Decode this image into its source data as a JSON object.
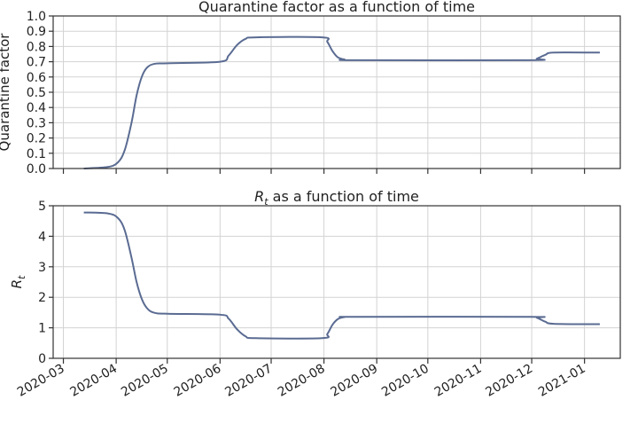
{
  "chart_data": [
    {
      "type": "line",
      "title": "Quarantine factor as a function of time",
      "ylabel": "Quarantine factor",
      "ylim": [
        0,
        1.0
      ],
      "yticks": [
        0.0,
        0.1,
        0.2,
        0.3,
        0.4,
        0.5,
        0.6,
        0.7,
        0.8,
        0.9,
        1.0
      ],
      "ytick_labels": [
        "0.0",
        "0.1",
        "0.2",
        "0.3",
        "0.4",
        "0.5",
        "0.6",
        "0.7",
        "0.8",
        "0.9",
        "1.0"
      ],
      "xlim": [
        "2020-02-24",
        "2021-01-22"
      ],
      "xticks": [
        "2020-03-01",
        "2020-04-01",
        "2020-05-01",
        "2020-06-01",
        "2020-07-01",
        "2020-08-01",
        "2020-09-01",
        "2020-10-01",
        "2020-11-01",
        "2020-12-01",
        "2021-01-01"
      ],
      "grid": true,
      "series": [
        {
          "color": "#5a6b92",
          "x": [
            "2020-03-13",
            "2020-03-27",
            "2020-04-02",
            "2020-04-06",
            "2020-04-10",
            "2020-04-13",
            "2020-04-16",
            "2020-04-19",
            "2020-04-23",
            "2020-05-01",
            "2020-06-01",
            "2020-06-06",
            "2020-06-11",
            "2020-06-16",
            "2020-06-22",
            "2020-07-31",
            "2020-08-03",
            "2020-08-06",
            "2020-08-09",
            "2020-08-13",
            "2020-08-20",
            "2020-11-30",
            "2020-12-04",
            "2020-12-09",
            "2020-12-14",
            "2021-01-10"
          ],
          "y": [
            0.0,
            0.01,
            0.04,
            0.12,
            0.3,
            0.48,
            0.6,
            0.66,
            0.685,
            0.69,
            0.7,
            0.74,
            0.81,
            0.85,
            0.86,
            0.86,
            0.83,
            0.77,
            0.73,
            0.715,
            0.71,
            0.71,
            0.72,
            0.745,
            0.76,
            0.76
          ]
        }
      ]
    },
    {
      "type": "line",
      "title": "R",
      "title_subscript": "t",
      "title_suffix": " as a function of time",
      "ylabel": "R",
      "ylabel_subscript": "t",
      "ylim": [
        0,
        5
      ],
      "yticks": [
        0,
        1,
        2,
        3,
        4,
        5
      ],
      "ytick_labels": [
        "0",
        "1",
        "2",
        "3",
        "4",
        "5"
      ],
      "xlim": [
        "2020-02-24",
        "2021-01-22"
      ],
      "xticks": [
        "2020-03-01",
        "2020-04-01",
        "2020-05-01",
        "2020-06-01",
        "2020-07-01",
        "2020-08-01",
        "2020-09-01",
        "2020-10-01",
        "2020-11-01",
        "2020-12-01",
        "2021-01-01"
      ],
      "xtick_labels": [
        "2020-03",
        "2020-04",
        "2020-05",
        "2020-06",
        "2020-07",
        "2020-08",
        "2020-09",
        "2020-10",
        "2020-11",
        "2020-12",
        "2021-01"
      ],
      "grid": true,
      "series": [
        {
          "color": "#5a6b92",
          "x": [
            "2020-03-13",
            "2020-03-27",
            "2020-04-02",
            "2020-04-06",
            "2020-04-10",
            "2020-04-13",
            "2020-04-16",
            "2020-04-19",
            "2020-04-23",
            "2020-05-01",
            "2020-06-01",
            "2020-06-06",
            "2020-06-11",
            "2020-06-16",
            "2020-06-22",
            "2020-07-31",
            "2020-08-03",
            "2020-08-06",
            "2020-08-09",
            "2020-08-13",
            "2020-08-20",
            "2020-11-30",
            "2020-12-04",
            "2020-12-09",
            "2020-12-14",
            "2021-01-10"
          ],
          "y": [
            4.78,
            4.75,
            4.6,
            4.2,
            3.3,
            2.5,
            1.95,
            1.65,
            1.5,
            1.46,
            1.43,
            1.3,
            0.95,
            0.72,
            0.66,
            0.66,
            0.8,
            1.1,
            1.28,
            1.35,
            1.36,
            1.36,
            1.33,
            1.2,
            1.13,
            1.12
          ]
        }
      ]
    }
  ]
}
